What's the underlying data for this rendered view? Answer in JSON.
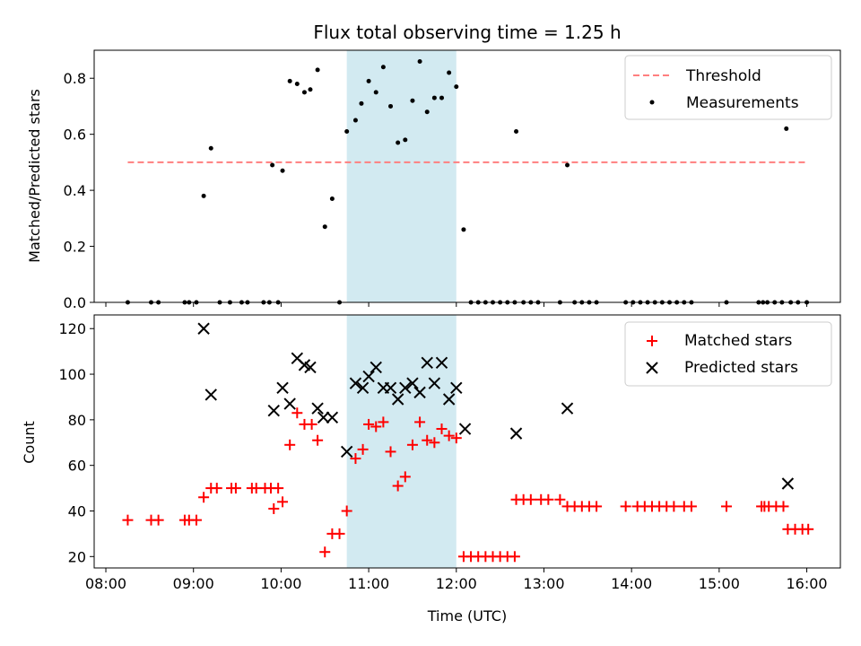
{
  "colors": {
    "band": "#add8e6",
    "threshold": "#ff7f7f",
    "matched": "#ff0000",
    "predicted": "#000000",
    "measurement": "#000000"
  },
  "chart_data": [
    {
      "type": "scatter",
      "title": "Flux total observing time = 1.25 h",
      "ylabel": "Matched/Predicted stars",
      "xlim": [
        "07:52",
        "16:23"
      ],
      "ylim": [
        0,
        0.9
      ],
      "x_ticks": [
        "08:00",
        "09:00",
        "10:00",
        "11:00",
        "12:00",
        "13:00",
        "14:00",
        "15:00",
        "16:00"
      ],
      "y_ticks": [
        "0.0",
        "0.2",
        "0.4",
        "0.6",
        "0.8"
      ],
      "legend_position": "top-right",
      "shaded_band": {
        "x0": "10:45",
        "x1": "12:00"
      },
      "threshold": {
        "name": "Threshold",
        "value": 0.5,
        "x0": "08:15",
        "x1": "16:00",
        "style": "dashed"
      },
      "series": [
        {
          "name": "Measurements",
          "points": [
            [
              "08:15",
              0.0
            ],
            [
              "08:31",
              0.0
            ],
            [
              "08:36",
              0.0
            ],
            [
              "08:54",
              0.0
            ],
            [
              "08:57",
              0.0
            ],
            [
              "09:02",
              0.0
            ],
            [
              "09:07",
              0.38
            ],
            [
              "09:12",
              0.55
            ],
            [
              "09:18",
              0.0
            ],
            [
              "09:25",
              0.0
            ],
            [
              "09:33",
              0.0
            ],
            [
              "09:37",
              0.0
            ],
            [
              "09:48",
              0.0
            ],
            [
              "09:52",
              0.0
            ],
            [
              "09:58",
              0.0
            ],
            [
              "09:54",
              0.49
            ],
            [
              "10:01",
              0.47
            ],
            [
              "10:06",
              0.79
            ],
            [
              "10:11",
              0.78
            ],
            [
              "10:16",
              0.75
            ],
            [
              "10:20",
              0.76
            ],
            [
              "10:25",
              0.83
            ],
            [
              "10:30",
              0.27
            ],
            [
              "10:35",
              0.37
            ],
            [
              "10:40",
              0.0
            ],
            [
              "10:45",
              0.61
            ],
            [
              "10:51",
              0.65
            ],
            [
              "10:55",
              0.71
            ],
            [
              "11:00",
              0.79
            ],
            [
              "11:05",
              0.75
            ],
            [
              "11:10",
              0.84
            ],
            [
              "11:15",
              0.7
            ],
            [
              "11:20",
              0.57
            ],
            [
              "11:25",
              0.58
            ],
            [
              "11:30",
              0.72
            ],
            [
              "11:35",
              0.86
            ],
            [
              "11:40",
              0.68
            ],
            [
              "11:45",
              0.73
            ],
            [
              "11:50",
              0.73
            ],
            [
              "11:55",
              0.82
            ],
            [
              "12:00",
              0.77
            ],
            [
              "12:05",
              0.26
            ],
            [
              "12:10",
              0.0
            ],
            [
              "12:15",
              0.0
            ],
            [
              "12:20",
              0.0
            ],
            [
              "12:25",
              0.0
            ],
            [
              "12:30",
              0.0
            ],
            [
              "12:35",
              0.0
            ],
            [
              "12:40",
              0.0
            ],
            [
              "12:41",
              0.61
            ],
            [
              "12:46",
              0.0
            ],
            [
              "12:51",
              0.0
            ],
            [
              "12:56",
              0.0
            ],
            [
              "13:11",
              0.0
            ],
            [
              "13:16",
              0.49
            ],
            [
              "13:21",
              0.0
            ],
            [
              "13:26",
              0.0
            ],
            [
              "13:31",
              0.0
            ],
            [
              "13:36",
              0.0
            ],
            [
              "13:56",
              0.0
            ],
            [
              "14:01",
              0.0
            ],
            [
              "14:06",
              0.0
            ],
            [
              "14:11",
              0.0
            ],
            [
              "14:16",
              0.0
            ],
            [
              "14:21",
              0.0
            ],
            [
              "14:26",
              0.0
            ],
            [
              "14:31",
              0.0
            ],
            [
              "14:36",
              0.0
            ],
            [
              "14:41",
              0.0
            ],
            [
              "15:05",
              0.0
            ],
            [
              "15:27",
              0.0
            ],
            [
              "15:30",
              0.0
            ],
            [
              "15:33",
              0.0
            ],
            [
              "15:38",
              0.0
            ],
            [
              "15:43",
              0.0
            ],
            [
              "15:46",
              0.62
            ],
            [
              "15:49",
              0.0
            ],
            [
              "15:54",
              0.0
            ],
            [
              "16:00",
              0.0
            ]
          ]
        }
      ]
    },
    {
      "type": "scatter",
      "xlabel": "Time (UTC)",
      "ylabel": "Count",
      "xlim": [
        "07:52",
        "16:23"
      ],
      "ylim": [
        15,
        126
      ],
      "x_ticks": [
        "08:00",
        "09:00",
        "10:00",
        "11:00",
        "12:00",
        "13:00",
        "14:00",
        "15:00",
        "16:00"
      ],
      "y_ticks": [
        "20",
        "40",
        "60",
        "80",
        "100",
        "120"
      ],
      "legend_position": "top-right",
      "shaded_band": {
        "x0": "10:45",
        "x1": "12:00"
      },
      "series": [
        {
          "name": "Matched stars",
          "marker": "plus",
          "points": [
            [
              "08:15",
              36
            ],
            [
              "08:31",
              36
            ],
            [
              "08:36",
              36
            ],
            [
              "08:54",
              36
            ],
            [
              "08:57",
              36
            ],
            [
              "09:02",
              36
            ],
            [
              "09:07",
              46
            ],
            [
              "09:12",
              50
            ],
            [
              "09:16",
              50
            ],
            [
              "09:26",
              50
            ],
            [
              "09:29",
              50
            ],
            [
              "09:40",
              50
            ],
            [
              "09:43",
              50
            ],
            [
              "09:49",
              50
            ],
            [
              "09:53",
              50
            ],
            [
              "09:58",
              50
            ],
            [
              "09:55",
              41
            ],
            [
              "10:01",
              44
            ],
            [
              "10:06",
              69
            ],
            [
              "10:11",
              83
            ],
            [
              "10:16",
              78
            ],
            [
              "10:21",
              78
            ],
            [
              "10:25",
              71
            ],
            [
              "10:30",
              22
            ],
            [
              "10:35",
              30
            ],
            [
              "10:40",
              30
            ],
            [
              "10:45",
              40
            ],
            [
              "10:51",
              63
            ],
            [
              "10:56",
              67
            ],
            [
              "11:00",
              78
            ],
            [
              "11:05",
              77
            ],
            [
              "11:10",
              79
            ],
            [
              "11:15",
              66
            ],
            [
              "11:20",
              51
            ],
            [
              "11:25",
              55
            ],
            [
              "11:30",
              69
            ],
            [
              "11:35",
              79
            ],
            [
              "11:40",
              71
            ],
            [
              "11:45",
              70
            ],
            [
              "11:50",
              76
            ],
            [
              "11:55",
              73
            ],
            [
              "12:00",
              72
            ],
            [
              "12:05",
              20
            ],
            [
              "12:10",
              20
            ],
            [
              "12:15",
              20
            ],
            [
              "12:20",
              20
            ],
            [
              "12:25",
              20
            ],
            [
              "12:30",
              20
            ],
            [
              "12:35",
              20
            ],
            [
              "12:40",
              20
            ],
            [
              "12:41",
              45
            ],
            [
              "12:46",
              45
            ],
            [
              "12:51",
              45
            ],
            [
              "12:58",
              45
            ],
            [
              "13:03",
              45
            ],
            [
              "13:11",
              45
            ],
            [
              "13:16",
              42
            ],
            [
              "13:21",
              42
            ],
            [
              "13:26",
              42
            ],
            [
              "13:31",
              42
            ],
            [
              "13:36",
              42
            ],
            [
              "13:56",
              42
            ],
            [
              "14:04",
              42
            ],
            [
              "14:09",
              42
            ],
            [
              "14:14",
              42
            ],
            [
              "14:19",
              42
            ],
            [
              "14:24",
              42
            ],
            [
              "14:29",
              42
            ],
            [
              "14:36",
              42
            ],
            [
              "14:41",
              42
            ],
            [
              "15:05",
              42
            ],
            [
              "15:29",
              42
            ],
            [
              "15:31",
              42
            ],
            [
              "15:34",
              42
            ],
            [
              "15:39",
              42
            ],
            [
              "15:44",
              42
            ],
            [
              "15:47",
              32
            ],
            [
              "15:52",
              32
            ],
            [
              "15:57",
              32
            ],
            [
              "16:01",
              32
            ]
          ]
        },
        {
          "name": "Predicted stars",
          "marker": "x",
          "points": [
            [
              "09:07",
              120
            ],
            [
              "09:12",
              91
            ],
            [
              "09:55",
              84
            ],
            [
              "10:01",
              94
            ],
            [
              "10:06",
              87
            ],
            [
              "10:11",
              107
            ],
            [
              "10:16",
              104
            ],
            [
              "10:20",
              103
            ],
            [
              "10:25",
              85
            ],
            [
              "10:29",
              81
            ],
            [
              "10:35",
              81
            ],
            [
              "10:45",
              66
            ],
            [
              "10:51",
              96
            ],
            [
              "10:56",
              94
            ],
            [
              "11:00",
              99
            ],
            [
              "11:05",
              103
            ],
            [
              "11:10",
              94
            ],
            [
              "11:15",
              94
            ],
            [
              "11:20",
              89
            ],
            [
              "11:25",
              94
            ],
            [
              "11:30",
              96
            ],
            [
              "11:35",
              92
            ],
            [
              "11:40",
              105
            ],
            [
              "11:45",
              96
            ],
            [
              "11:50",
              105
            ],
            [
              "11:55",
              89
            ],
            [
              "12:00",
              94
            ],
            [
              "12:06",
              76
            ],
            [
              "12:41",
              74
            ],
            [
              "13:16",
              85
            ],
            [
              "15:47",
              52
            ]
          ]
        }
      ]
    }
  ]
}
